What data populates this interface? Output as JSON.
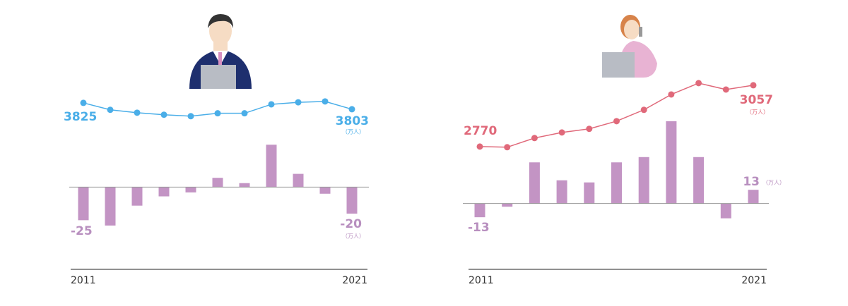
{
  "chart_data": [
    {
      "type": "combo",
      "categories": [
        "2011",
        null,
        null,
        null,
        null,
        null,
        null,
        null,
        null,
        null,
        "2021"
      ],
      "unit": "（万人）",
      "line": {
        "color": "#4aaee8",
        "values": [
          3825,
          3801,
          3791,
          3784,
          3779,
          3789,
          3789,
          3820,
          3827,
          3830,
          3803
        ]
      },
      "bars": {
        "color": "#c394c4",
        "values": [
          -25,
          -29,
          -14,
          -7,
          -4,
          7,
          3,
          32,
          10,
          -5,
          -20
        ]
      },
      "ylim": [
        -61,
        88
      ],
      "y2lim": [
        3254,
        3937
      ]
    },
    {
      "type": "combo",
      "categories": [
        "2011",
        null,
        null,
        null,
        null,
        null,
        null,
        null,
        null,
        null,
        "2021"
      ],
      "unit": "（万人）",
      "line": {
        "color": "#e0697a",
        "values": [
          2770,
          2767,
          2810,
          2836,
          2853,
          2889,
          2942,
          3014,
          3067,
          3037,
          3057
        ]
      },
      "bars": {
        "color": "#c394c4",
        "values": [
          -13,
          -3,
          39,
          22,
          20,
          39,
          44,
          78,
          44,
          -14,
          13
        ]
      },
      "ylim": [
        -61,
        126
      ],
      "y2lim": [
        2202,
        3126
      ]
    }
  ]
}
